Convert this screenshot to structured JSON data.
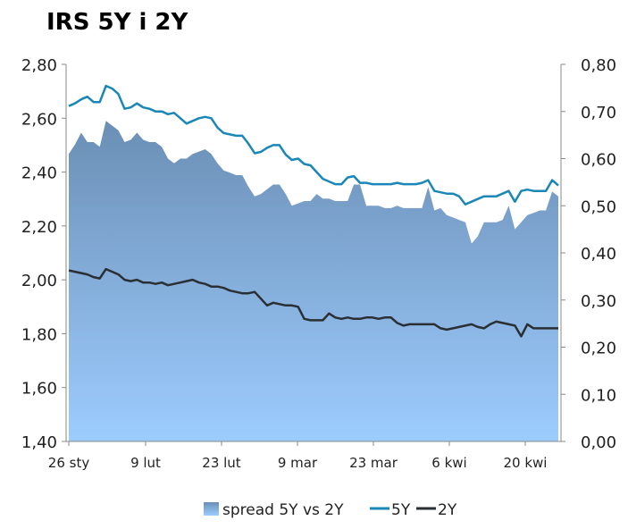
{
  "chart_data": {
    "type": "line",
    "title": "IRS 5Y i 2Y",
    "xlabel": "",
    "ylabel_left": "",
    "ylabel_right": "",
    "x_ticks": [
      "26 sty",
      "9 lut",
      "23 lut",
      "9 mar",
      "23 mar",
      "6 kwi",
      "20 kwi"
    ],
    "y_left": {
      "min": 1.4,
      "max": 2.8,
      "ticks": [
        "1,40",
        "1,60",
        "1,80",
        "2,00",
        "2,20",
        "2,40",
        "2,60",
        "2,80"
      ]
    },
    "y_right": {
      "min": 0.0,
      "max": 0.8,
      "ticks": [
        "0,00",
        "0,10",
        "0,20",
        "0,30",
        "0,40",
        "0,50",
        "0,60",
        "0,70",
        "0,80"
      ]
    },
    "grid": false,
    "legend_position": "bottom",
    "colors": {
      "spread_top": "#6b8fb5",
      "spread_bottom": "#9dccff",
      "five_y": "#1a87b7",
      "two_y": "#2a2f33"
    },
    "series": [
      {
        "name": "spread 5Y vs 2Y",
        "axis": "right",
        "kind": "area",
        "values": [
          0.61,
          0.63,
          0.655,
          0.635,
          0.635,
          0.625,
          0.68,
          0.67,
          0.66,
          0.635,
          0.64,
          0.655,
          0.64,
          0.635,
          0.635,
          0.625,
          0.6,
          0.59,
          0.6,
          0.6,
          0.61,
          0.615,
          0.62,
          0.61,
          0.59,
          0.575,
          0.57,
          0.565,
          0.565,
          0.54,
          0.52,
          0.525,
          0.535,
          0.545,
          0.545,
          0.525,
          0.5,
          0.505,
          0.51,
          0.51,
          0.525,
          0.515,
          0.515,
          0.51,
          0.51,
          0.51,
          0.545,
          0.545,
          0.5,
          0.5,
          0.5,
          0.495,
          0.495,
          0.5,
          0.495,
          0.495,
          0.495,
          0.495,
          0.54,
          0.49,
          0.495,
          0.48,
          0.475,
          0.47,
          0.465,
          0.42,
          0.435,
          0.465,
          0.465,
          0.465,
          0.47,
          0.5,
          0.45,
          0.465,
          0.48,
          0.485,
          0.49,
          0.49,
          0.53,
          0.52
        ]
      },
      {
        "name": "5Y",
        "axis": "left",
        "kind": "line",
        "values": [
          2.645,
          2.655,
          2.67,
          2.68,
          2.66,
          2.66,
          2.72,
          2.71,
          2.69,
          2.635,
          2.64,
          2.655,
          2.64,
          2.635,
          2.625,
          2.625,
          2.615,
          2.62,
          2.6,
          2.58,
          2.59,
          2.6,
          2.605,
          2.6,
          2.565,
          2.545,
          2.54,
          2.535,
          2.535,
          2.505,
          2.47,
          2.475,
          2.49,
          2.5,
          2.5,
          2.465,
          2.445,
          2.45,
          2.43,
          2.425,
          2.4,
          2.375,
          2.365,
          2.355,
          2.355,
          2.38,
          2.385,
          2.36,
          2.36,
          2.355,
          2.355,
          2.355,
          2.355,
          2.36,
          2.355,
          2.355,
          2.355,
          2.36,
          2.37,
          2.33,
          2.325,
          2.32,
          2.32,
          2.31,
          2.28,
          2.29,
          2.3,
          2.31,
          2.31,
          2.31,
          2.32,
          2.33,
          2.29,
          2.33,
          2.335,
          2.33,
          2.33,
          2.33,
          2.37,
          2.35
        ]
      },
      {
        "name": "2Y",
        "axis": "left",
        "kind": "line",
        "values": [
          2.035,
          2.03,
          2.025,
          2.02,
          2.01,
          2.005,
          2.04,
          2.03,
          2.02,
          2.0,
          1.995,
          2.0,
          1.99,
          1.99,
          1.985,
          1.99,
          1.98,
          1.985,
          1.99,
          1.995,
          2.0,
          1.99,
          1.985,
          1.975,
          1.975,
          1.97,
          1.96,
          1.955,
          1.95,
          1.95,
          1.955,
          1.93,
          1.905,
          1.915,
          1.91,
          1.905,
          1.905,
          1.9,
          1.855,
          1.85,
          1.85,
          1.85,
          1.875,
          1.86,
          1.855,
          1.86,
          1.855,
          1.855,
          1.86,
          1.86,
          1.855,
          1.86,
          1.86,
          1.84,
          1.83,
          1.835,
          1.835,
          1.835,
          1.835,
          1.835,
          1.82,
          1.815,
          1.82,
          1.825,
          1.83,
          1.835,
          1.825,
          1.82,
          1.835,
          1.845,
          1.84,
          1.835,
          1.83,
          1.79,
          1.835,
          1.82,
          1.82,
          1.82,
          1.82,
          1.82
        ]
      }
    ]
  }
}
